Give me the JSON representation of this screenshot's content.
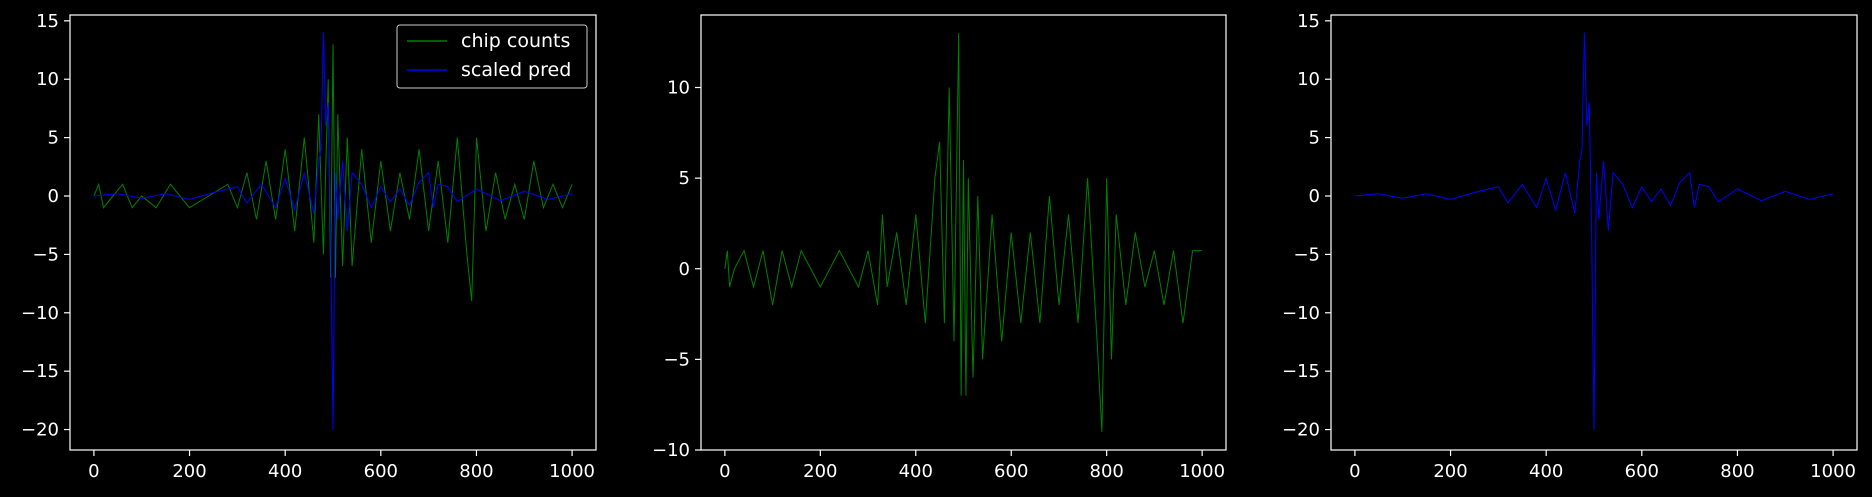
{
  "colors": {
    "background": "#000000",
    "axis": "#ffffff",
    "counts": "#008000",
    "pred": "#0000ff"
  },
  "chart_data": [
    {
      "type": "line",
      "xlim": [
        -50,
        1050
      ],
      "ylim": [
        -21.75,
        15.5
      ],
      "xticks": [
        0,
        200,
        400,
        600,
        800,
        1000
      ],
      "yticks": [
        -20,
        -15,
        -10,
        -5,
        0,
        5,
        10,
        15
      ],
      "xtick_labels": [
        "0",
        "200",
        "400",
        "600",
        "800",
        "1000"
      ],
      "ytick_labels": [
        "−20",
        "−15",
        "−10",
        "−5",
        "0",
        "5",
        "10",
        "15"
      ],
      "grid": false,
      "legend_position": "top-right",
      "legend": [
        "chip counts",
        "scaled pred"
      ],
      "series": [
        {
          "name": "chip counts",
          "color": "#008000",
          "description_points": [
            [
              0,
              0
            ],
            [
              10,
              1
            ],
            [
              20,
              -1
            ],
            [
              40,
              0
            ],
            [
              60,
              1
            ],
            [
              80,
              -1
            ],
            [
              100,
              0
            ],
            [
              130,
              -1
            ],
            [
              160,
              1
            ],
            [
              200,
              -1
            ],
            [
              240,
              0
            ],
            [
              280,
              1
            ],
            [
              300,
              -1
            ],
            [
              320,
              2
            ],
            [
              340,
              -2
            ],
            [
              360,
              3
            ],
            [
              380,
              -2
            ],
            [
              400,
              4
            ],
            [
              420,
              -3
            ],
            [
              440,
              5
            ],
            [
              460,
              -4
            ],
            [
              470,
              7
            ],
            [
              480,
              -5
            ],
            [
              490,
              10
            ],
            [
              495,
              -7
            ],
            [
              500,
              13
            ],
            [
              505,
              -7
            ],
            [
              510,
              7
            ],
            [
              520,
              -6
            ],
            [
              530,
              5
            ],
            [
              540,
              -6
            ],
            [
              560,
              4
            ],
            [
              580,
              -4
            ],
            [
              600,
              3
            ],
            [
              620,
              -3
            ],
            [
              640,
              2
            ],
            [
              660,
              -2
            ],
            [
              680,
              4
            ],
            [
              700,
              -3
            ],
            [
              720,
              3
            ],
            [
              740,
              -4
            ],
            [
              760,
              5
            ],
            [
              780,
              -5
            ],
            [
              790,
              -9
            ],
            [
              800,
              5
            ],
            [
              820,
              -3
            ],
            [
              840,
              2
            ],
            [
              860,
              -2
            ],
            [
              880,
              1
            ],
            [
              900,
              -2
            ],
            [
              920,
              3
            ],
            [
              940,
              -1
            ],
            [
              960,
              1
            ],
            [
              980,
              -1
            ],
            [
              1000,
              1
            ]
          ]
        },
        {
          "name": "scaled pred",
          "color": "#0000ff",
          "description_points": [
            [
              0,
              0
            ],
            [
              50,
              0.2
            ],
            [
              100,
              -0.2
            ],
            [
              150,
              0.2
            ],
            [
              200,
              -0.3
            ],
            [
              250,
              0.3
            ],
            [
              300,
              0.8
            ],
            [
              320,
              -0.6
            ],
            [
              350,
              1
            ],
            [
              380,
              -1
            ],
            [
              400,
              1.5
            ],
            [
              420,
              -1.2
            ],
            [
              440,
              2
            ],
            [
              460,
              -1.5
            ],
            [
              470,
              3
            ],
            [
              475,
              4
            ],
            [
              480,
              14
            ],
            [
              485,
              6
            ],
            [
              490,
              8
            ],
            [
              495,
              -3
            ],
            [
              500,
              -20
            ],
            [
              505,
              2
            ],
            [
              510,
              -2
            ],
            [
              520,
              3
            ],
            [
              530,
              -3
            ],
            [
              540,
              2
            ],
            [
              560,
              1
            ],
            [
              580,
              -1
            ],
            [
              600,
              0.8
            ],
            [
              620,
              -0.5
            ],
            [
              640,
              0.6
            ],
            [
              660,
              -0.8
            ],
            [
              680,
              1.2
            ],
            [
              700,
              2
            ],
            [
              710,
              -1
            ],
            [
              720,
              1
            ],
            [
              740,
              0.8
            ],
            [
              760,
              -0.5
            ],
            [
              800,
              0.6
            ],
            [
              850,
              -0.4
            ],
            [
              900,
              0.4
            ],
            [
              950,
              -0.3
            ],
            [
              1000,
              0.2
            ]
          ]
        }
      ]
    },
    {
      "type": "line",
      "xlim": [
        -50,
        1050
      ],
      "ylim": [
        -10,
        14
      ],
      "xticks": [
        0,
        200,
        400,
        600,
        800,
        1000
      ],
      "yticks": [
        -10,
        -5,
        0,
        5,
        10
      ],
      "xtick_labels": [
        "0",
        "200",
        "400",
        "600",
        "800",
        "1000"
      ],
      "ytick_labels": [
        "−10",
        "−5",
        "0",
        "5",
        "10"
      ],
      "grid": false,
      "series": [
        {
          "color": "#008000",
          "description_points": [
            [
              0,
              0
            ],
            [
              5,
              1
            ],
            [
              10,
              -1
            ],
            [
              20,
              0
            ],
            [
              40,
              1
            ],
            [
              60,
              -1
            ],
            [
              80,
              1
            ],
            [
              100,
              -2
            ],
            [
              120,
              1
            ],
            [
              140,
              -1
            ],
            [
              160,
              1
            ],
            [
              200,
              -1
            ],
            [
              240,
              1
            ],
            [
              280,
              -1
            ],
            [
              300,
              1
            ],
            [
              320,
              -2
            ],
            [
              330,
              3
            ],
            [
              340,
              -1
            ],
            [
              360,
              2
            ],
            [
              380,
              -2
            ],
            [
              400,
              3
            ],
            [
              420,
              -3
            ],
            [
              440,
              5
            ],
            [
              450,
              7
            ],
            [
              460,
              -3
            ],
            [
              470,
              10
            ],
            [
              480,
              -4
            ],
            [
              490,
              13
            ],
            [
              495,
              -7
            ],
            [
              500,
              6
            ],
            [
              505,
              -7
            ],
            [
              510,
              5
            ],
            [
              520,
              -6
            ],
            [
              530,
              4
            ],
            [
              540,
              -5
            ],
            [
              560,
              3
            ],
            [
              580,
              -4
            ],
            [
              600,
              2
            ],
            [
              620,
              -3
            ],
            [
              640,
              2
            ],
            [
              660,
              -3
            ],
            [
              680,
              4
            ],
            [
              700,
              -2
            ],
            [
              720,
              3
            ],
            [
              740,
              -3
            ],
            [
              760,
              5
            ],
            [
              780,
              -4
            ],
            [
              790,
              -9
            ],
            [
              800,
              5
            ],
            [
              810,
              -5
            ],
            [
              820,
              3
            ],
            [
              840,
              -2
            ],
            [
              860,
              2
            ],
            [
              880,
              -1
            ],
            [
              900,
              1
            ],
            [
              920,
              -2
            ],
            [
              940,
              1
            ],
            [
              960,
              -3
            ],
            [
              980,
              1
            ],
            [
              1000,
              1
            ]
          ]
        }
      ]
    },
    {
      "type": "line",
      "xlim": [
        -50,
        1050
      ],
      "ylim": [
        -21.75,
        15.5
      ],
      "xticks": [
        0,
        200,
        400,
        600,
        800,
        1000
      ],
      "yticks": [
        -20,
        -15,
        -10,
        -5,
        0,
        5,
        10,
        15
      ],
      "xtick_labels": [
        "0",
        "200",
        "400",
        "600",
        "800",
        "1000"
      ],
      "ytick_labels": [
        "−20",
        "−15",
        "−10",
        "−5",
        "0",
        "5",
        "10",
        "15"
      ],
      "grid": false,
      "series": [
        {
          "color": "#0000ff",
          "description_points": [
            [
              0,
              0
            ],
            [
              50,
              0.2
            ],
            [
              100,
              -0.2
            ],
            [
              150,
              0.2
            ],
            [
              200,
              -0.3
            ],
            [
              250,
              0.3
            ],
            [
              300,
              0.8
            ],
            [
              320,
              -0.6
            ],
            [
              350,
              1
            ],
            [
              380,
              -1
            ],
            [
              400,
              1.5
            ],
            [
              420,
              -1.2
            ],
            [
              440,
              2
            ],
            [
              460,
              -1.5
            ],
            [
              470,
              3
            ],
            [
              475,
              4
            ],
            [
              480,
              14
            ],
            [
              485,
              6
            ],
            [
              490,
              8
            ],
            [
              495,
              -3
            ],
            [
              500,
              -20
            ],
            [
              505,
              2
            ],
            [
              510,
              -2
            ],
            [
              520,
              3
            ],
            [
              530,
              -3
            ],
            [
              540,
              2
            ],
            [
              560,
              1
            ],
            [
              580,
              -1
            ],
            [
              600,
              0.8
            ],
            [
              620,
              -0.5
            ],
            [
              640,
              0.6
            ],
            [
              660,
              -0.8
            ],
            [
              680,
              1.2
            ],
            [
              700,
              2
            ],
            [
              710,
              -1
            ],
            [
              720,
              1
            ],
            [
              740,
              0.8
            ],
            [
              760,
              -0.5
            ],
            [
              800,
              0.6
            ],
            [
              850,
              -0.4
            ],
            [
              900,
              0.4
            ],
            [
              950,
              -0.3
            ],
            [
              1000,
              0.2
            ]
          ]
        }
      ]
    }
  ]
}
